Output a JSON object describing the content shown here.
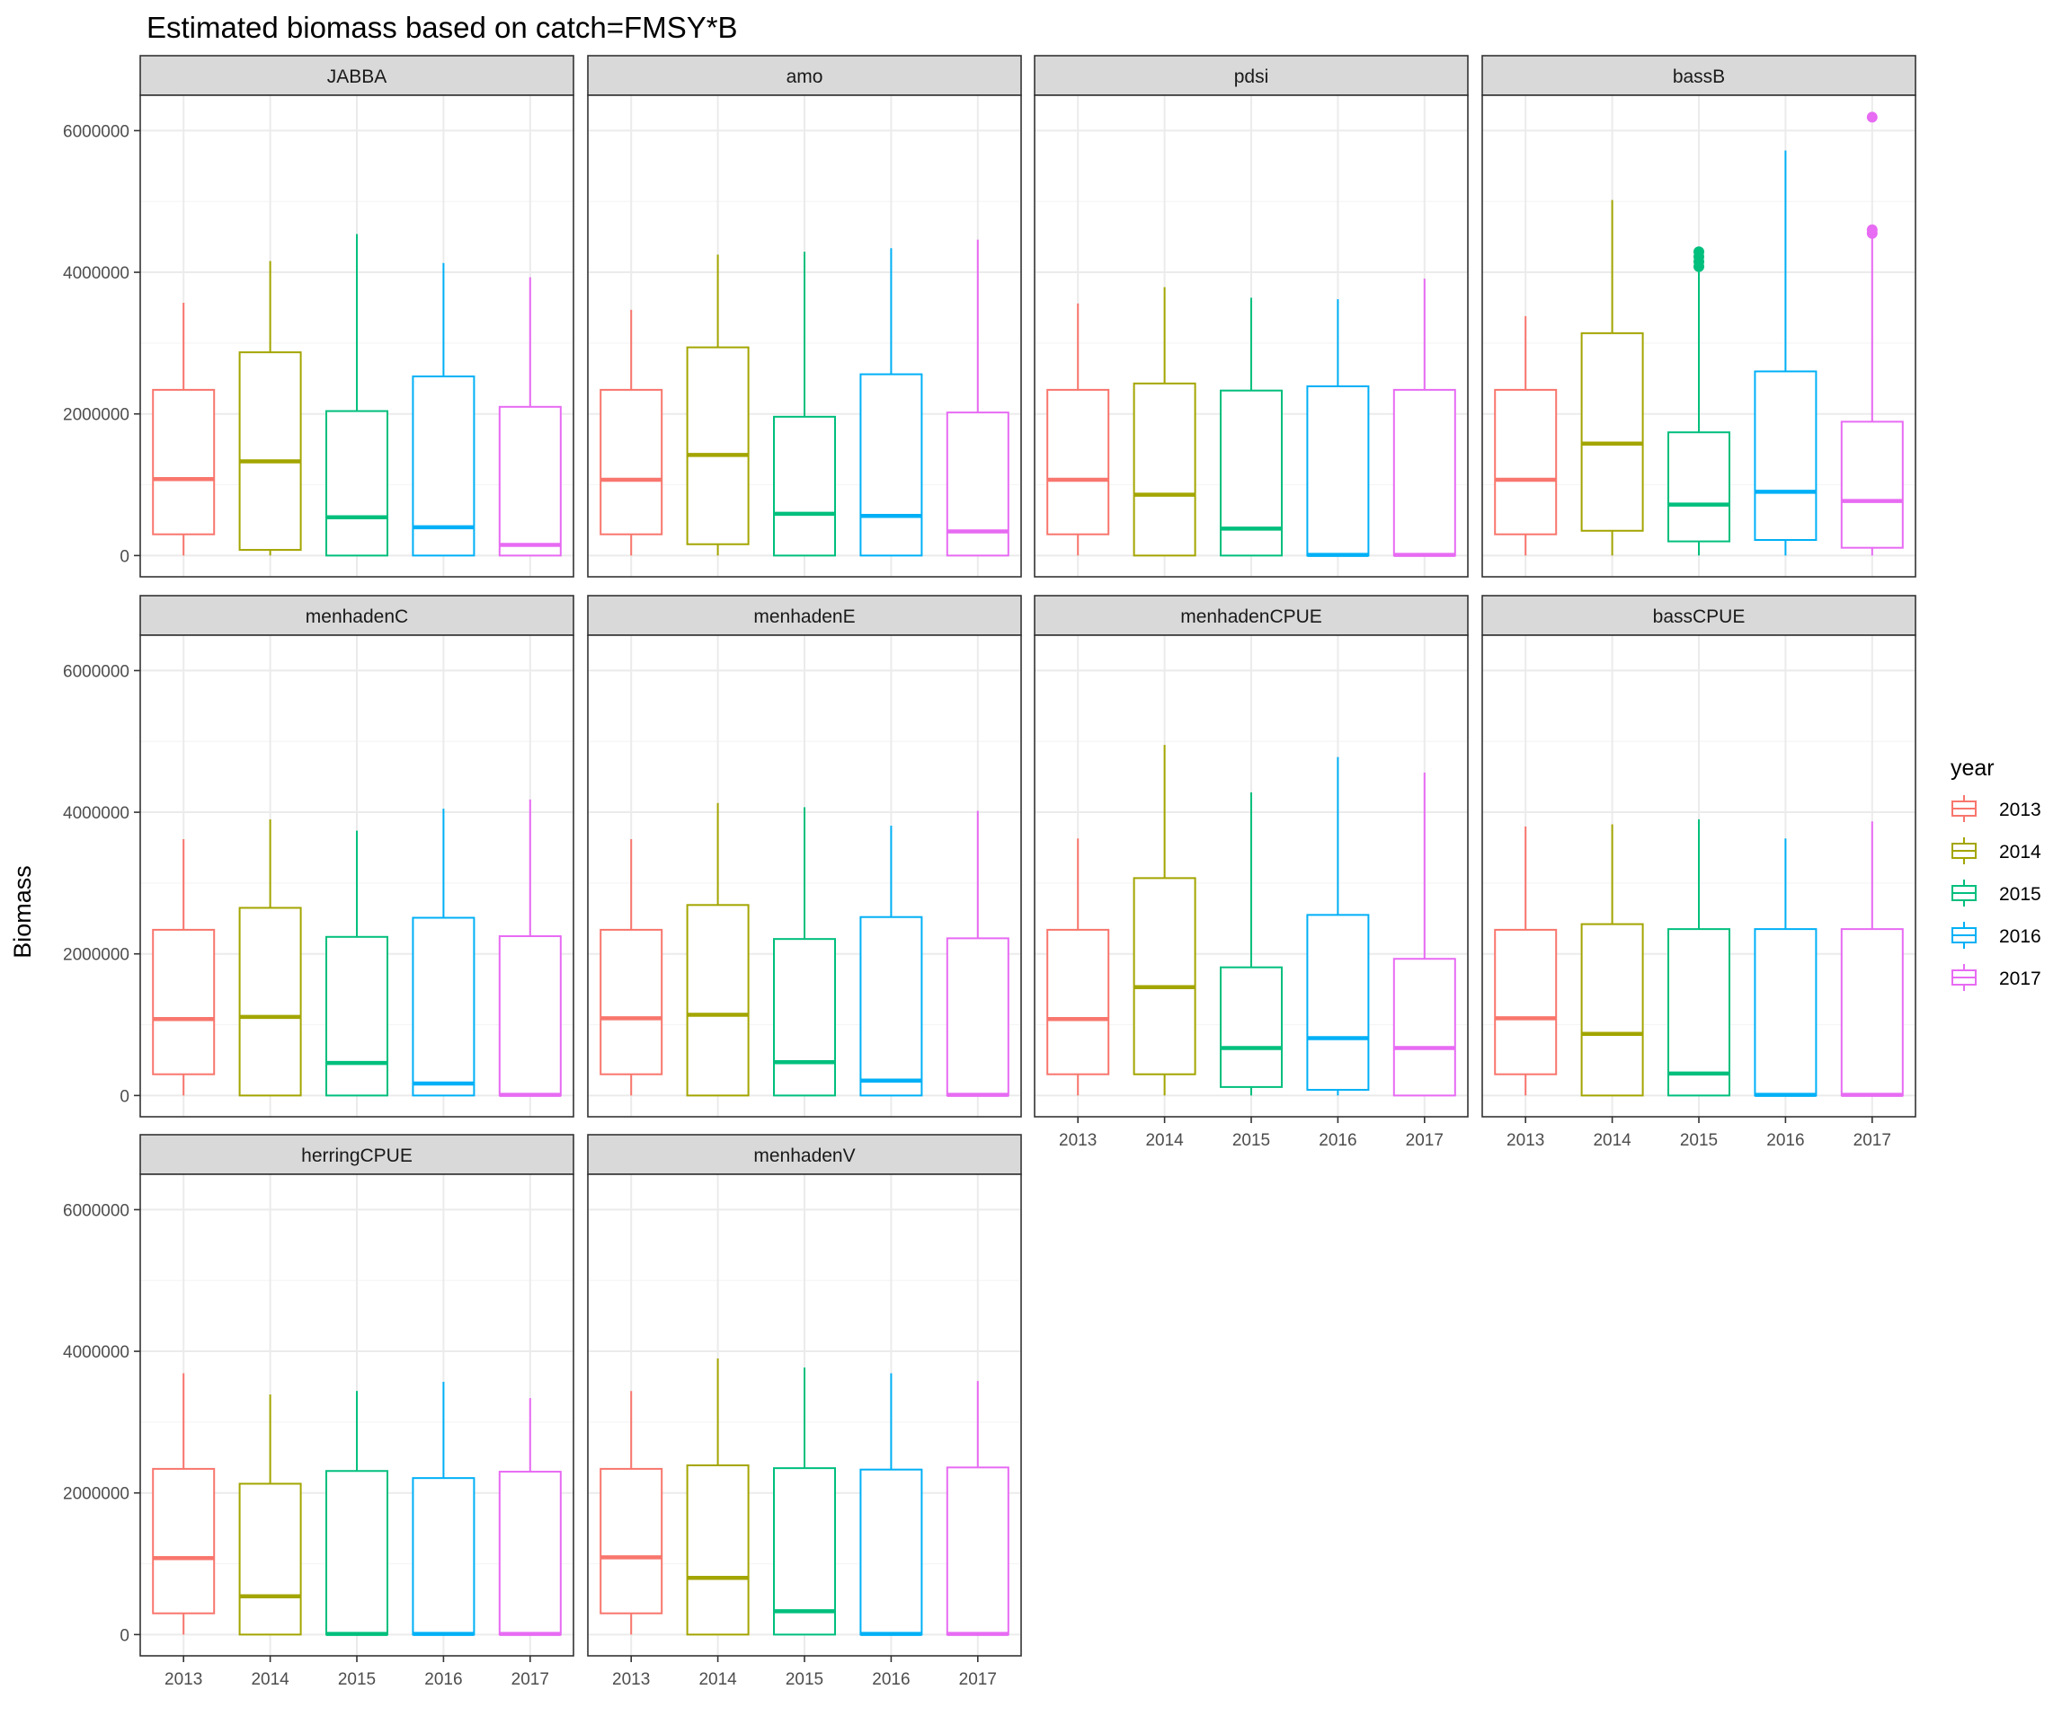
{
  "chart_data": {
    "type": "boxplot",
    "title": "Estimated biomass based on catch=FMSY*B",
    "ylabel": "Biomass",
    "xlabel": "",
    "ylim": [
      -300000,
      6500000
    ],
    "yticks": [
      0,
      2000000,
      4000000,
      6000000
    ],
    "ytick_labels": [
      "0",
      "2000000",
      "4000000",
      "6000000"
    ],
    "categories": [
      "2013",
      "2014",
      "2015",
      "2016",
      "2017"
    ],
    "grid": true,
    "legend": {
      "title": "year",
      "position": "right",
      "items": [
        {
          "label": "2013",
          "color": "#F8766D"
        },
        {
          "label": "2014",
          "color": "#A3A500"
        },
        {
          "label": "2015",
          "color": "#00BF7D"
        },
        {
          "label": "2016",
          "color": "#00B0F6"
        },
        {
          "label": "2017",
          "color": "#E76BF3"
        }
      ]
    },
    "colors": {
      "strip_fill": "#D9D9D9",
      "panel_border": "#333333",
      "grid_major": "#EBEBEB",
      "grid_minor": "#F5F5F5"
    },
    "panels": [
      {
        "name": "JABBA",
        "boxes": [
          {
            "min": 0,
            "q1": 300000,
            "median": 1080000,
            "q3": 2340000,
            "max": 3570000,
            "outliers": []
          },
          {
            "min": 0,
            "q1": 80000,
            "median": 1330000,
            "q3": 2870000,
            "max": 4160000,
            "outliers": []
          },
          {
            "min": 0,
            "q1": 0,
            "median": 540000,
            "q3": 2040000,
            "max": 4540000,
            "outliers": []
          },
          {
            "min": 0,
            "q1": 0,
            "median": 400000,
            "q3": 2530000,
            "max": 4130000,
            "outliers": []
          },
          {
            "min": 0,
            "q1": 0,
            "median": 150000,
            "q3": 2100000,
            "max": 3930000,
            "outliers": []
          }
        ]
      },
      {
        "name": "amo",
        "boxes": [
          {
            "min": 0,
            "q1": 300000,
            "median": 1070000,
            "q3": 2340000,
            "max": 3470000,
            "outliers": []
          },
          {
            "min": 0,
            "q1": 160000,
            "median": 1420000,
            "q3": 2940000,
            "max": 4250000,
            "outliers": []
          },
          {
            "min": 0,
            "q1": 0,
            "median": 590000,
            "q3": 1960000,
            "max": 4290000,
            "outliers": []
          },
          {
            "min": 0,
            "q1": 0,
            "median": 560000,
            "q3": 2560000,
            "max": 4340000,
            "outliers": []
          },
          {
            "min": 0,
            "q1": 0,
            "median": 340000,
            "q3": 2020000,
            "max": 4460000,
            "outliers": []
          }
        ]
      },
      {
        "name": "pdsi",
        "boxes": [
          {
            "min": 0,
            "q1": 300000,
            "median": 1070000,
            "q3": 2340000,
            "max": 3560000,
            "outliers": []
          },
          {
            "min": 0,
            "q1": 0,
            "median": 860000,
            "q3": 2430000,
            "max": 3790000,
            "outliers": []
          },
          {
            "min": 0,
            "q1": 0,
            "median": 380000,
            "q3": 2330000,
            "max": 3640000,
            "outliers": []
          },
          {
            "min": 0,
            "q1": 0,
            "median": 10000,
            "q3": 2390000,
            "max": 3620000,
            "outliers": []
          },
          {
            "min": 0,
            "q1": 0,
            "median": 10000,
            "q3": 2340000,
            "max": 3910000,
            "outliers": []
          }
        ]
      },
      {
        "name": "bassB",
        "boxes": [
          {
            "min": 0,
            "q1": 300000,
            "median": 1070000,
            "q3": 2340000,
            "max": 3380000,
            "outliers": []
          },
          {
            "min": 0,
            "q1": 350000,
            "median": 1580000,
            "q3": 3140000,
            "max": 5020000,
            "outliers": []
          },
          {
            "min": 0,
            "q1": 200000,
            "median": 720000,
            "q3": 1740000,
            "max": 4020000,
            "outliers": [
              4080000,
              4150000,
              4220000,
              4290000
            ]
          },
          {
            "min": 0,
            "q1": 220000,
            "median": 900000,
            "q3": 2600000,
            "max": 5720000,
            "outliers": []
          },
          {
            "min": 0,
            "q1": 110000,
            "median": 770000,
            "q3": 1890000,
            "max": 4480000,
            "outliers": [
              4550000,
              4600000,
              6190000
            ]
          }
        ]
      },
      {
        "name": "menhadenC",
        "boxes": [
          {
            "min": 0,
            "q1": 300000,
            "median": 1080000,
            "q3": 2340000,
            "max": 3620000,
            "outliers": []
          },
          {
            "min": 0,
            "q1": 0,
            "median": 1110000,
            "q3": 2650000,
            "max": 3900000,
            "outliers": []
          },
          {
            "min": 0,
            "q1": 0,
            "median": 460000,
            "q3": 2240000,
            "max": 3740000,
            "outliers": []
          },
          {
            "min": 0,
            "q1": 0,
            "median": 170000,
            "q3": 2510000,
            "max": 4050000,
            "outliers": []
          },
          {
            "min": 0,
            "q1": 0,
            "median": 10000,
            "q3": 2250000,
            "max": 4180000,
            "outliers": []
          }
        ]
      },
      {
        "name": "menhadenE",
        "boxes": [
          {
            "min": 0,
            "q1": 300000,
            "median": 1090000,
            "q3": 2340000,
            "max": 3620000,
            "outliers": []
          },
          {
            "min": 0,
            "q1": 0,
            "median": 1140000,
            "q3": 2690000,
            "max": 4130000,
            "outliers": []
          },
          {
            "min": 0,
            "q1": 0,
            "median": 470000,
            "q3": 2210000,
            "max": 4070000,
            "outliers": []
          },
          {
            "min": 0,
            "q1": 0,
            "median": 210000,
            "q3": 2520000,
            "max": 3810000,
            "outliers": []
          },
          {
            "min": 0,
            "q1": 0,
            "median": 10000,
            "q3": 2220000,
            "max": 4020000,
            "outliers": []
          }
        ]
      },
      {
        "name": "menhadenCPUE",
        "boxes": [
          {
            "min": 0,
            "q1": 300000,
            "median": 1080000,
            "q3": 2340000,
            "max": 3630000,
            "outliers": []
          },
          {
            "min": 0,
            "q1": 300000,
            "median": 1530000,
            "q3": 3070000,
            "max": 4950000,
            "outliers": []
          },
          {
            "min": 0,
            "q1": 120000,
            "median": 670000,
            "q3": 1810000,
            "max": 4280000,
            "outliers": []
          },
          {
            "min": 0,
            "q1": 80000,
            "median": 810000,
            "q3": 2550000,
            "max": 4780000,
            "outliers": []
          },
          {
            "min": 0,
            "q1": 0,
            "median": 670000,
            "q3": 1930000,
            "max": 4560000,
            "outliers": []
          }
        ]
      },
      {
        "name": "bassCPUE",
        "boxes": [
          {
            "min": 0,
            "q1": 300000,
            "median": 1090000,
            "q3": 2340000,
            "max": 3800000,
            "outliers": []
          },
          {
            "min": 0,
            "q1": 0,
            "median": 870000,
            "q3": 2420000,
            "max": 3830000,
            "outliers": []
          },
          {
            "min": 0,
            "q1": 0,
            "median": 310000,
            "q3": 2350000,
            "max": 3900000,
            "outliers": []
          },
          {
            "min": 0,
            "q1": 0,
            "median": 10000,
            "q3": 2350000,
            "max": 3630000,
            "outliers": []
          },
          {
            "min": 0,
            "q1": 0,
            "median": 10000,
            "q3": 2350000,
            "max": 3870000,
            "outliers": []
          }
        ]
      },
      {
        "name": "herringCPUE",
        "boxes": [
          {
            "min": 0,
            "q1": 300000,
            "median": 1080000,
            "q3": 2340000,
            "max": 3690000,
            "outliers": []
          },
          {
            "min": 0,
            "q1": 0,
            "median": 540000,
            "q3": 2130000,
            "max": 3390000,
            "outliers": []
          },
          {
            "min": 0,
            "q1": 0,
            "median": 10000,
            "q3": 2310000,
            "max": 3440000,
            "outliers": []
          },
          {
            "min": 0,
            "q1": 0,
            "median": 10000,
            "q3": 2210000,
            "max": 3570000,
            "outliers": []
          },
          {
            "min": 0,
            "q1": 0,
            "median": 10000,
            "q3": 2300000,
            "max": 3340000,
            "outliers": []
          }
        ]
      },
      {
        "name": "menhadenV",
        "boxes": [
          {
            "min": 0,
            "q1": 300000,
            "median": 1090000,
            "q3": 2340000,
            "max": 3440000,
            "outliers": []
          },
          {
            "min": 0,
            "q1": 0,
            "median": 800000,
            "q3": 2390000,
            "max": 3900000,
            "outliers": []
          },
          {
            "min": 0,
            "q1": 0,
            "median": 330000,
            "q3": 2350000,
            "max": 3770000,
            "outliers": []
          },
          {
            "min": 0,
            "q1": 0,
            "median": 10000,
            "q3": 2330000,
            "max": 3690000,
            "outliers": []
          },
          {
            "min": 0,
            "q1": 0,
            "median": 10000,
            "q3": 2360000,
            "max": 3580000,
            "outliers": []
          }
        ]
      }
    ]
  }
}
